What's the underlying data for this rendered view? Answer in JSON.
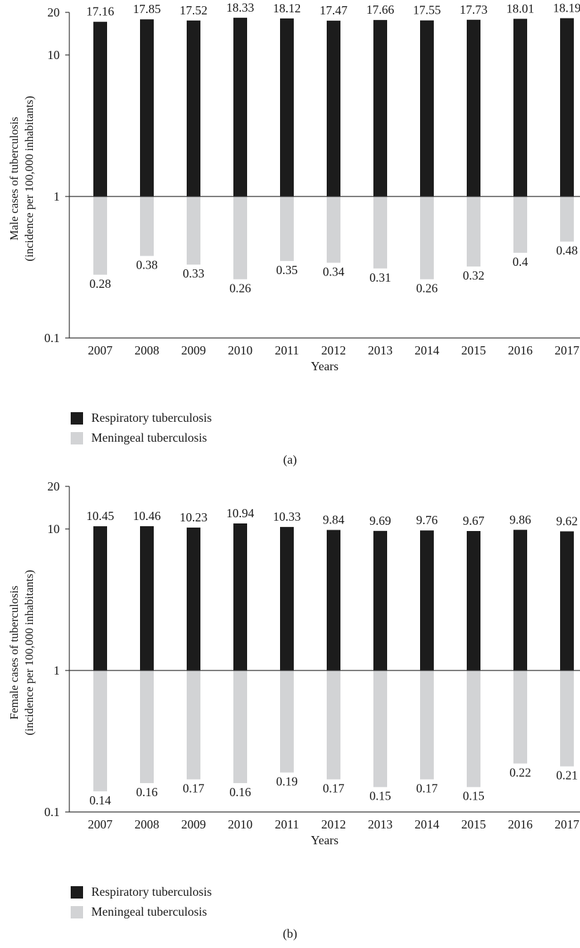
{
  "colors": {
    "respiratory": "#1c1c1c",
    "meningeal": "#d2d3d5",
    "axis": "#333333"
  },
  "chart_data": [
    {
      "type": "bar",
      "panel_label": "(a)",
      "ylabel_line1": "Male cases of tuberculosis",
      "ylabel_line2": "(incidence per 100,000 inhabitants)",
      "xlabel": "Years",
      "yscale": "log",
      "ylim": [
        0.1,
        20
      ],
      "baseline": 1,
      "yticks": [
        0.1,
        1,
        10,
        20
      ],
      "ytick_labels": [
        "0.1",
        "1",
        "10",
        "20"
      ],
      "categories": [
        "2007",
        "2008",
        "2009",
        "2010",
        "2011",
        "2012",
        "2013",
        "2014",
        "2015",
        "2016",
        "2017"
      ],
      "series": [
        {
          "name": "Respiratory tuberculosis",
          "values": [
            17.16,
            17.85,
            17.52,
            18.33,
            18.12,
            17.47,
            17.66,
            17.55,
            17.73,
            18.01,
            18.19
          ],
          "labels": [
            "17.16",
            "17.85",
            "17.52",
            "18.33",
            "18.12",
            "17.47",
            "17.66",
            "17.55",
            "17.73",
            "18.01",
            "18.19"
          ]
        },
        {
          "name": "Meningeal tuberculosis",
          "values": [
            0.28,
            0.38,
            0.33,
            0.26,
            0.35,
            0.34,
            0.31,
            0.26,
            0.32,
            0.4,
            0.48
          ],
          "labels": [
            "0.28",
            "0.38",
            "0.33",
            "0.26",
            "0.35",
            "0.34",
            "0.31",
            "0.26",
            "0.32",
            "0.4",
            "0.48"
          ]
        }
      ],
      "legend_position": "bottom-left"
    },
    {
      "type": "bar",
      "panel_label": "(b)",
      "ylabel_line1": "Female cases of tuberculosis",
      "ylabel_line2": "(incidence per 100,000 inhabitants)",
      "xlabel": "Years",
      "yscale": "log",
      "ylim": [
        0.1,
        20
      ],
      "baseline": 1,
      "yticks": [
        0.1,
        1,
        10,
        20
      ],
      "ytick_labels": [
        "0.1",
        "1",
        "10",
        "20"
      ],
      "categories": [
        "2007",
        "2008",
        "2009",
        "2010",
        "2011",
        "2012",
        "2013",
        "2014",
        "2015",
        "2016",
        "2017"
      ],
      "series": [
        {
          "name": "Respiratory tuberculosis",
          "values": [
            10.45,
            10.46,
            10.23,
            10.94,
            10.33,
            9.84,
            9.69,
            9.76,
            9.67,
            9.86,
            9.62
          ],
          "labels": [
            "10.45",
            "10.46",
            "10.23",
            "10.94",
            "10.33",
            "9.84",
            "9.69",
            "9.76",
            "9.67",
            "9.86",
            "9.62"
          ]
        },
        {
          "name": "Meningeal tuberculosis",
          "values": [
            0.14,
            0.16,
            0.17,
            0.16,
            0.19,
            0.17,
            0.15,
            0.17,
            0.15,
            0.22,
            0.21
          ],
          "labels": [
            "0.14",
            "0.16",
            "0.17",
            "0.16",
            "0.19",
            "0.17",
            "0.15",
            "0.17",
            "0.15",
            "0.22",
            "0.21"
          ]
        }
      ],
      "legend_position": "bottom-left"
    }
  ]
}
